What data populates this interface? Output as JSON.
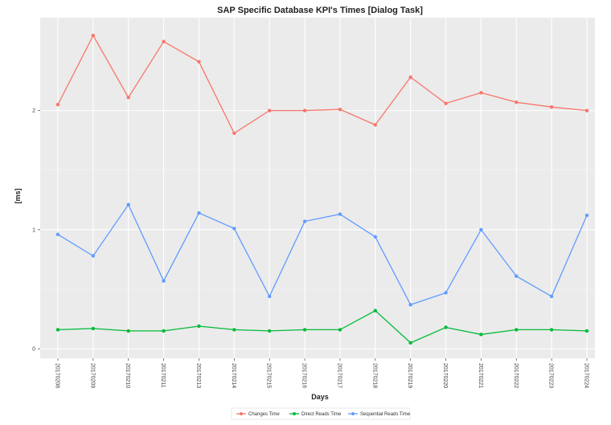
{
  "chart_data": {
    "type": "line",
    "title": "SAP Specific Database KPI's Times [Dialog Task]",
    "xlabel": "Days",
    "ylabel": "[ms]",
    "categories": [
      "20170208",
      "20170209",
      "20170210",
      "20170211",
      "20170213",
      "20170214",
      "20170215",
      "20170216",
      "20170217",
      "20170218",
      "20170219",
      "20170220",
      "20170221",
      "20170222",
      "20170223",
      "20170224"
    ],
    "y_ticks": [
      "0",
      "1",
      "2"
    ],
    "y_tick_values": [
      0,
      1,
      2
    ],
    "ylim": [
      -0.08,
      2.78
    ],
    "grid": true,
    "legend_position": "bottom",
    "series": [
      {
        "name": "Changes Time",
        "color": "#f8766d",
        "values": [
          2.05,
          2.63,
          2.11,
          2.58,
          2.41,
          1.81,
          2.0,
          2.0,
          2.01,
          1.88,
          2.28,
          2.06,
          2.15,
          2.07,
          2.03,
          2.0
        ]
      },
      {
        "name": "Direct Reads Time",
        "color": "#00ba38",
        "values": [
          0.16,
          0.17,
          0.15,
          0.15,
          0.19,
          0.16,
          0.15,
          0.16,
          0.16,
          0.32,
          0.05,
          0.18,
          0.12,
          0.16,
          0.16,
          0.15
        ]
      },
      {
        "name": "Sequential Reads Time",
        "color": "#619cff",
        "values": [
          0.96,
          0.78,
          1.21,
          0.57,
          1.14,
          1.01,
          0.44,
          1.07,
          1.13,
          0.94,
          0.37,
          0.47,
          1.0,
          0.61,
          0.44,
          1.12
        ]
      }
    ]
  }
}
